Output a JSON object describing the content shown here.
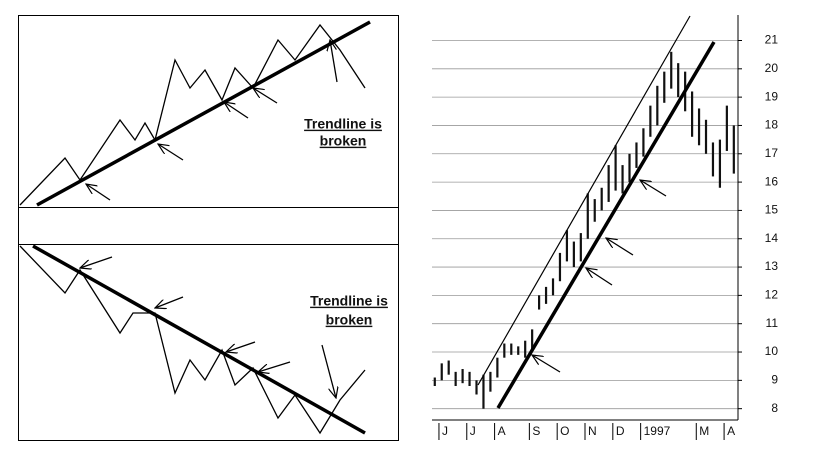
{
  "diagram": {
    "top_note": [
      "Trendline is",
      "broken"
    ],
    "bottom_note": [
      "Trendline is",
      "broken"
    ]
  },
  "chart_data": {
    "type": "range_bar",
    "categories": [
      null,
      "J",
      null,
      null,
      null,
      "J",
      null,
      null,
      null,
      "A",
      null,
      null,
      null,
      null,
      "S",
      null,
      null,
      null,
      "O",
      null,
      null,
      null,
      "N",
      null,
      null,
      null,
      "D",
      null,
      null,
      null,
      "1997",
      null,
      null,
      null,
      null,
      null,
      null,
      null,
      "M",
      null,
      null,
      null,
      "A",
      null
    ],
    "high": [
      9.1,
      9.6,
      9.7,
      9.3,
      9.4,
      9.3,
      9.0,
      9.2,
      9.3,
      9.8,
      10.3,
      10.3,
      10.2,
      10.4,
      10.8,
      12.0,
      12.3,
      12.6,
      13.5,
      14.3,
      13.9,
      14.2,
      15.6,
      15.4,
      15.8,
      16.6,
      17.3,
      16.6,
      17.0,
      17.4,
      17.9,
      18.7,
      19.4,
      19.9,
      20.6,
      20.2,
      19.9,
      19.2,
      18.6,
      18.2,
      17.4,
      17.5,
      18.7,
      18.0
    ],
    "low": [
      8.8,
      9.0,
      9.2,
      8.8,
      8.9,
      8.8,
      8.5,
      8.0,
      8.6,
      9.1,
      9.8,
      9.9,
      9.9,
      9.8,
      10.1,
      11.5,
      11.7,
      12.0,
      12.5,
      13.2,
      13.0,
      13.2,
      14.0,
      14.6,
      15.0,
      15.3,
      15.7,
      15.6,
      16.0,
      16.5,
      16.9,
      17.6,
      18.0,
      18.8,
      19.3,
      19.0,
      18.5,
      17.6,
      17.3,
      17.0,
      16.2,
      15.8,
      17.1,
      16.3
    ],
    "color": "#111111",
    "ylim": [
      7.6,
      21.9
    ],
    "yticks": [
      8,
      9,
      10,
      11,
      12,
      13,
      14,
      15,
      16,
      17,
      18,
      19,
      20,
      21
    ],
    "grid": true
  }
}
